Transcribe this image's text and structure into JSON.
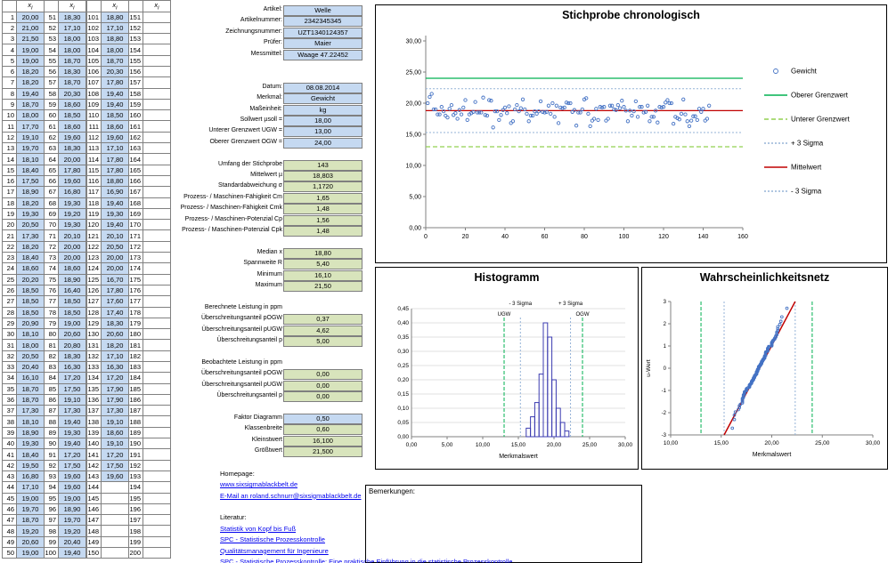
{
  "tables": {
    "header_main": "x",
    "header_sub": "i",
    "groups": [
      {
        "start": 1,
        "values": [
          "20,00",
          "21,00",
          "21,50",
          "19,00",
          "19,00",
          "18,20",
          "18,20",
          "19,40",
          "18,70",
          "18,00",
          "17,70",
          "19,10",
          "19,70",
          "18,10",
          "18,40",
          "17,50",
          "18,90",
          "18,20",
          "19,30",
          "20,50",
          "17,30",
          "18,20",
          "18,40",
          "18,60",
          "20,20",
          "18,50",
          "18,50",
          "18,50",
          "20,90",
          "18,10",
          "18,00",
          "20,50",
          "20,40",
          "16,10",
          "18,70",
          "18,70",
          "17,30",
          "18,10",
          "18,90",
          "19,30",
          "18,40",
          "19,50",
          "16,80",
          "17,10",
          "19,00",
          "19,70",
          "18,70",
          "19,20",
          "20,60",
          "19,00"
        ]
      },
      {
        "start": 51,
        "values": [
          "18,30",
          "17,10",
          "18,00",
          "18,00",
          "18,70",
          "18,30",
          "18,70",
          "20,30",
          "18,60",
          "18,50",
          "18,60",
          "19,60",
          "18,30",
          "20,00",
          "17,80",
          "19,60",
          "16,80",
          "19,30",
          "19,20",
          "19,30",
          "20,10",
          "20,00",
          "20,00",
          "18,60",
          "18,90",
          "16,40",
          "18,50",
          "18,50",
          "19,00",
          "20,60",
          "20,80",
          "18,30",
          "16,30",
          "17,20",
          "17,50",
          "19,10",
          "17,30",
          "19,40",
          "19,30",
          "19,40",
          "17,20",
          "17,50",
          "19,60",
          "19,60",
          "19,00",
          "18,90",
          "19,70",
          "19,20",
          "20,40",
          "19,40"
        ]
      },
      {
        "start": 101,
        "values": [
          "18,80",
          "17,10",
          "18,80",
          "18,00",
          "18,70",
          "20,30",
          "17,80",
          "19,40",
          "19,40",
          "18,50",
          "18,60",
          "19,60",
          "17,10",
          "17,80",
          "17,80",
          "18,80",
          "16,90",
          "19,40",
          "19,30",
          "19,40",
          "20,10",
          "20,50",
          "20,00",
          "20,00",
          "16,70",
          "17,80",
          "17,60",
          "17,40",
          "18,30",
          "20,60",
          "18,20",
          "17,10",
          "16,30",
          "17,20",
          "17,90",
          "17,90",
          "17,30",
          "19,10",
          "18,60",
          "19,10",
          "17,20",
          "17,50",
          "19,60",
          "",
          "",
          "",
          "",
          "",
          "",
          ""
        ]
      },
      {
        "start": 151,
        "values": [
          "",
          "",
          "",
          "",
          "",
          "",
          "",
          "",
          "",
          "",
          "",
          "",
          "",
          "",
          "",
          "",
          "",
          "",
          "",
          "",
          "",
          "",
          "",
          "",
          "",
          "",
          "",
          "",
          "",
          "",
          "",
          "",
          "",
          "",
          "",
          "",
          "",
          "",
          "",
          "",
          "",
          "",
          "",
          "",
          "",
          "",
          "",
          "",
          "",
          ""
        ]
      }
    ]
  },
  "form": {
    "rows": [
      {
        "t": "f",
        "label": "Artikel:",
        "value": "Welle",
        "box": "blue"
      },
      {
        "t": "f",
        "label": "Artikelnummer:",
        "value": "2342345345",
        "box": "blue"
      },
      {
        "t": "f",
        "label": "Zeichnungsnummer:",
        "value": "UZT1340124357",
        "box": "blue"
      },
      {
        "t": "f",
        "label": "Prüfer:",
        "value": "Maier",
        "box": "blue"
      },
      {
        "t": "f",
        "label": "Messmittel:",
        "value": "Waage 47.22452",
        "box": "blue"
      },
      {
        "t": "gap",
        "n": 2
      },
      {
        "t": "f",
        "label": "Datum:",
        "value": "08.08.2014",
        "box": "blue"
      },
      {
        "t": "f",
        "label": "Merkmal:",
        "value": "Gewicht",
        "box": "blue"
      },
      {
        "t": "f",
        "label": "Maßeinheit:",
        "value": "kg",
        "box": "blue"
      },
      {
        "t": "f",
        "label": "Sollwert µsoll =",
        "value": "18,00",
        "box": "blue"
      },
      {
        "t": "f",
        "label": "Unterer Grenzwert UGW =",
        "value": "13,00",
        "box": "blue"
      },
      {
        "t": "f",
        "label": "Oberer Grenzwert OGW =",
        "value": "24,00",
        "box": "blue"
      },
      {
        "t": "gap",
        "n": 1
      },
      {
        "t": "f",
        "label": "Umfang der Stichprobe",
        "value": "143",
        "box": "green"
      },
      {
        "t": "f",
        "label": "Mittelwert µ",
        "value": "18,803",
        "box": "green"
      },
      {
        "t": "f",
        "label": "Standardabweichung σ",
        "value": "1,1720",
        "box": "green"
      },
      {
        "t": "f",
        "label": "Prozess- / Maschinen-Fähigkeit Cm",
        "value": "1,65",
        "box": "green"
      },
      {
        "t": "f",
        "label": "Prozess- / Maschinen-Fähigkeit Cmk",
        "value": "1,48",
        "box": "green"
      },
      {
        "t": "f",
        "label": "Prozess- / Maschinen-Potenzial Cp",
        "value": "1,56",
        "box": "green"
      },
      {
        "t": "f",
        "label": "Prozess- / Maschinen-Potenzial Cpk",
        "value": "1,48",
        "box": "green"
      },
      {
        "t": "gap",
        "n": 1
      },
      {
        "t": "f",
        "label": "Median x",
        "value": "18,80",
        "box": "green"
      },
      {
        "t": "f",
        "label": "Spannweite R",
        "value": "5,40",
        "box": "green"
      },
      {
        "t": "f",
        "label": "Minimum",
        "value": "16,10",
        "box": "green"
      },
      {
        "t": "f",
        "label": "Maximum",
        "value": "21,50",
        "box": "green"
      },
      {
        "t": "gap",
        "n": 1
      },
      {
        "t": "h",
        "label": "Berechnete Leistung in ppm"
      },
      {
        "t": "f",
        "label": "Überschreitungsanteil pOGW",
        "value": "0,37",
        "box": "green"
      },
      {
        "t": "f",
        "label": "Überschreitungsanteil pUGW",
        "value": "4,62",
        "box": "green"
      },
      {
        "t": "f",
        "label": "Überschreitungsanteil p",
        "value": "5,00",
        "box": "green"
      },
      {
        "t": "gap",
        "n": 1
      },
      {
        "t": "h",
        "label": "Beobachtete Leistung in ppm"
      },
      {
        "t": "f",
        "label": "Überschreitungsanteil pOGW",
        "value": "0,00",
        "box": "green"
      },
      {
        "t": "f",
        "label": "Überschreitungsanteil pUGW",
        "value": "0,00",
        "box": "green"
      },
      {
        "t": "f",
        "label": "Überschreitungsanteil p",
        "value": "0,00",
        "box": "green"
      },
      {
        "t": "gap",
        "n": 1
      },
      {
        "t": "f",
        "label": "Faktor Diagramm",
        "value": "0,50",
        "box": "blue"
      },
      {
        "t": "f",
        "label": "Klassenbreite",
        "value": "0,60",
        "box": "green"
      },
      {
        "t": "f",
        "label": "Kleinstwert",
        "value": "16,100",
        "box": "green"
      },
      {
        "t": "f",
        "label": "Größtwert",
        "value": "21,500",
        "box": "green"
      },
      {
        "t": "gap",
        "n": 1
      },
      {
        "t": "t",
        "label": "Homepage:"
      },
      {
        "t": "l",
        "label": "www.sixsigmablackbelt.de"
      },
      {
        "t": "l",
        "label": "E-Mail an roland.schnurr@sixsigmablackbelt.de",
        "w": 174
      },
      {
        "t": "gap",
        "n": 1
      },
      {
        "t": "t",
        "label": "Literatur:"
      },
      {
        "t": "l",
        "label": "Statistik von Kopf bis Fuß"
      },
      {
        "t": "l",
        "label": "SPC - Statistische Prozesskontrolle"
      },
      {
        "t": "l",
        "label": "Qualitätsmanagement für Ingenieure"
      },
      {
        "t": "l",
        "label": "SPC - Statistische Prozesskontrolle: Eine praktische Einführung in die statistische Prozesskontrolle"
      }
    ]
  },
  "bemerkungen": {
    "label": "Bemerkungen:"
  },
  "chart_data": [
    {
      "type": "scatter",
      "title": "Stichprobe chronologisch",
      "xlim": [
        0,
        160
      ],
      "ylim": [
        0,
        30
      ],
      "x_ticks": [
        0,
        20,
        40,
        60,
        80,
        100,
        120,
        140,
        160
      ],
      "x_tick_labels": [
        "0",
        "20",
        "40",
        "60",
        "80",
        "100",
        "120",
        "140",
        "160"
      ],
      "y_ticks": [
        0,
        5,
        10,
        15,
        20,
        25,
        30
      ],
      "y_tick_labels": [
        "0,00",
        "5,00",
        "10,00",
        "15,00",
        "20,00",
        "25,00",
        "30,00"
      ],
      "lines": {
        "ogw": 24,
        "ugw": 13,
        "mittelwert": 18.803,
        "plus_3_sigma": 22.319,
        "minus_3_sigma": 15.287
      },
      "series": [
        {
          "name": "Gewicht",
          "values_from": "tables.groups xi columns, rows 1-143"
        }
      ],
      "legend": [
        {
          "label": "Gewicht",
          "marker": "point",
          "color": "#4472C4",
          "dash": ""
        },
        {
          "label": "Oberer Grenzwert",
          "marker": "line",
          "color": "#00B050",
          "dash": ""
        },
        {
          "label": "Unterer Grenzwert",
          "marker": "line",
          "color": "#92D050",
          "dash": "5,3"
        },
        {
          "label": "+ 3 Sigma",
          "marker": "line",
          "color": "#95B3D7",
          "dash": "2,2"
        },
        {
          "label": "Mittelwert",
          "marker": "line",
          "color": "#C00000",
          "dash": ""
        },
        {
          "label": "- 3 Sigma",
          "marker": "line",
          "color": "#95B3D7",
          "dash": "2,2"
        }
      ]
    },
    {
      "type": "histogram",
      "title": "Histogramm",
      "xlabel": "Merkmalswert",
      "xlim": [
        0,
        30
      ],
      "ylim": [
        0,
        0.45
      ],
      "x_ticks": [
        0,
        5,
        10,
        15,
        20,
        25,
        30
      ],
      "x_tick_labels": [
        "0,00",
        "5,00",
        "10,00",
        "15,00",
        "20,00",
        "25,00",
        "30,00"
      ],
      "y_ticks": [
        0,
        0.05,
        0.1,
        0.15,
        0.2,
        0.25,
        0.3,
        0.35,
        0.4,
        0.45
      ],
      "y_tick_labels": [
        "0,00",
        "0,05",
        "0,10",
        "0,15",
        "0,20",
        "0,25",
        "0,30",
        "0,35",
        "0,40",
        "0,45"
      ],
      "bin_start": 16.1,
      "bin_width": 0.6,
      "densities": [
        0.03,
        0.07,
        0.12,
        0.22,
        0.4,
        0.35,
        0.2,
        0.1,
        0.05,
        0.02
      ],
      "markers": [
        {
          "label": "- 3 Sigma",
          "x": 15.287,
          "row": 1,
          "color": "#95B3D7",
          "dash": "2,2"
        },
        {
          "label": "+ 3 Sigma",
          "x": 22.319,
          "row": 1,
          "color": "#95B3D7",
          "dash": "2,2"
        },
        {
          "label": "UGW",
          "x": 13,
          "row": 2,
          "color": "#00B050",
          "dash": "4,2"
        },
        {
          "label": "OGW",
          "x": 24,
          "row": 2,
          "color": "#00B050",
          "dash": "4,2"
        }
      ]
    },
    {
      "type": "scatter",
      "title": "Wahrscheinlichkeitsnetz",
      "xlabel": "Merkmalswert",
      "ylabel": "u-Wert",
      "xlim": [
        10,
        30
      ],
      "ylim": [
        -3,
        3
      ],
      "x_ticks": [
        10,
        15,
        20,
        25,
        30
      ],
      "x_tick_labels": [
        "10,00",
        "15,00",
        "20,00",
        "25,00",
        "30,00"
      ],
      "y_ticks": [
        -3,
        -2,
        -1,
        0,
        1,
        2,
        3
      ],
      "fit_line": {
        "mean": 18.803,
        "sigma": 1.172,
        "color": "#C00000"
      },
      "markers": [
        {
          "label": "UGW",
          "x": 13,
          "color": "#00B050",
          "dash": "4,2"
        },
        {
          "label": "- 3 Sigma",
          "x": 15.287,
          "color": "#95B3D7",
          "dash": "2,2"
        },
        {
          "label": "+ 3 Sigma",
          "x": 22.319,
          "color": "#95B3D7",
          "dash": "2,2"
        },
        {
          "label": "OGW",
          "x": 24,
          "color": "#00B050",
          "dash": "4,2"
        }
      ],
      "points_from": "sorted xi values vs. normal quantiles"
    }
  ]
}
